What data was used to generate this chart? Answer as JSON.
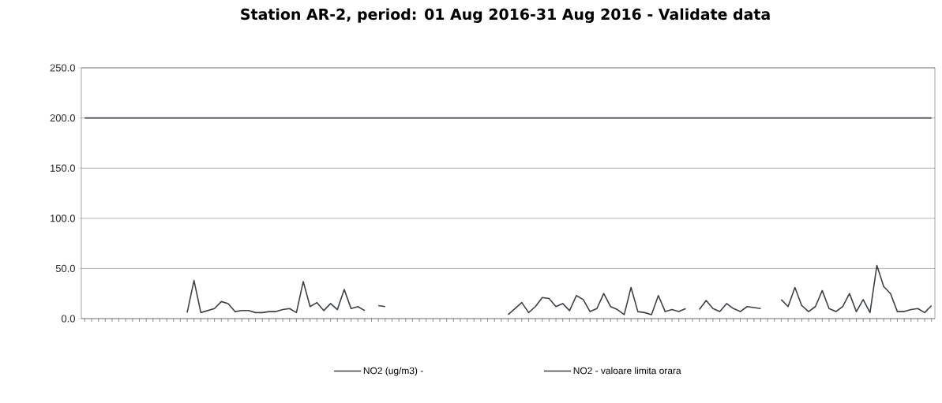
{
  "chart_data": {
    "type": "line",
    "title": "Station AR-2, period: 01 Aug 2016-31 Aug 2016 - Validate data",
    "categories": [
      null,
      null,
      null,
      null,
      null,
      null,
      null,
      null,
      null,
      null,
      null,
      null,
      null,
      null,
      null,
      null,
      null,
      null,
      null,
      null,
      null,
      null,
      null,
      null,
      null,
      null,
      null,
      null,
      null,
      null,
      null,
      null,
      null,
      null,
      null,
      null,
      null,
      null,
      null,
      null,
      null,
      null,
      null,
      null,
      null,
      null,
      null,
      null,
      null,
      null,
      null,
      null,
      null,
      null,
      null,
      null,
      null,
      null,
      null,
      null,
      null,
      null,
      null,
      null,
      null,
      null,
      null,
      null,
      null,
      null,
      null,
      null,
      null,
      null,
      null,
      null,
      null,
      null,
      null,
      null,
      null,
      null,
      null,
      null,
      null,
      null,
      null,
      null,
      null,
      null,
      null,
      null,
      null,
      null,
      null,
      null,
      null,
      null,
      null,
      null,
      null,
      null,
      null,
      null,
      null,
      null,
      null,
      null,
      null,
      null,
      null,
      null,
      null,
      null,
      null,
      null,
      null,
      null,
      null,
      null,
      null,
      null,
      null,
      null,
      null
    ],
    "ylim": [
      0,
      250
    ],
    "yticks": [
      {
        "value": 0,
        "label": "0.0"
      },
      {
        "value": 50,
        "label": "50.0"
      },
      {
        "value": 100,
        "label": "100.0"
      },
      {
        "value": 150,
        "label": "150.0"
      },
      {
        "value": 200,
        "label": "200.0"
      },
      {
        "value": 250,
        "label": "250.0"
      }
    ],
    "grid": "y",
    "legend": "bottom",
    "marker": "none",
    "line_style": "solid",
    "series": [
      {
        "name": "NO2 (ug/m3)  -",
        "color": "#3c4146",
        "values": [
          null,
          null,
          null,
          null,
          null,
          null,
          null,
          null,
          null,
          null,
          null,
          null,
          null,
          null,
          null,
          6,
          38,
          6,
          8,
          10,
          17,
          15,
          7,
          8,
          8,
          6,
          6,
          7,
          7,
          9,
          10,
          6,
          37,
          12,
          16,
          8,
          15,
          9,
          29,
          10,
          12,
          8,
          null,
          13,
          12,
          null,
          null,
          null,
          null,
          null,
          null,
          null,
          null,
          null,
          null,
          null,
          null,
          null,
          null,
          null,
          null,
          null,
          4,
          10,
          16,
          6,
          12,
          21,
          20,
          12,
          15,
          8,
          23,
          19,
          7,
          10,
          25,
          12,
          9,
          4,
          31,
          7,
          6,
          4,
          23,
          7,
          9,
          7,
          10,
          null,
          9,
          18,
          10,
          7,
          15,
          10,
          7,
          12,
          11,
          10,
          null,
          null,
          19,
          12,
          31,
          13,
          7,
          12,
          28,
          10,
          7,
          12,
          25,
          7,
          19,
          6,
          53,
          32,
          25,
          7,
          7,
          9,
          10,
          6,
          13
        ]
      },
      {
        "name": "NO2 - valoare limita orara",
        "color": "#3c4146",
        "values": [
          200,
          200,
          200,
          200,
          200,
          200,
          200,
          200,
          200,
          200,
          200,
          200,
          200,
          200,
          200,
          200,
          200,
          200,
          200,
          200,
          200,
          200,
          200,
          200,
          200,
          200,
          200,
          200,
          200,
          200,
          200,
          200,
          200,
          200,
          200,
          200,
          200,
          200,
          200,
          200,
          200,
          200,
          200,
          200,
          200,
          200,
          200,
          200,
          200,
          200,
          200,
          200,
          200,
          200,
          200,
          200,
          200,
          200,
          200,
          200,
          200,
          200,
          200,
          200,
          200,
          200,
          200,
          200,
          200,
          200,
          200,
          200,
          200,
          200,
          200,
          200,
          200,
          200,
          200,
          200,
          200,
          200,
          200,
          200,
          200,
          200,
          200,
          200,
          200,
          200,
          200,
          200,
          200,
          200,
          200,
          200,
          200,
          200,
          200,
          200,
          200,
          200,
          200,
          200,
          200,
          200,
          200,
          200,
          200,
          200,
          200,
          200,
          200,
          200,
          200,
          200,
          200,
          200,
          200,
          200,
          200,
          200,
          200,
          200,
          200
        ]
      }
    ]
  }
}
